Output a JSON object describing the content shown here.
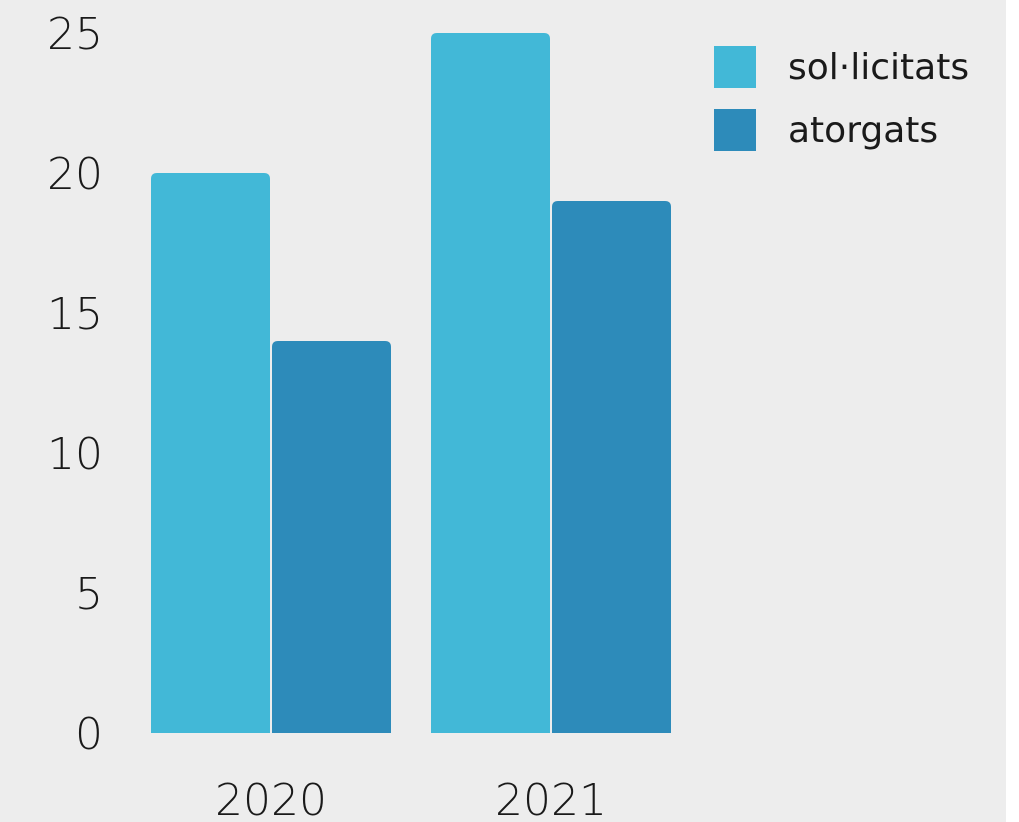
{
  "chart_data": {
    "type": "bar",
    "categories": [
      "2020",
      "2021"
    ],
    "series": [
      {
        "name": "sol·licitats",
        "values": [
          20,
          25
        ],
        "color": "#42b8d7"
      },
      {
        "name": "atorgats",
        "values": [
          14,
          19
        ],
        "color": "#2d8bba"
      }
    ],
    "ylim": [
      0,
      25
    ],
    "yticks": [
      "0",
      "5",
      "10",
      "15",
      "20",
      "25"
    ],
    "xlabel": "",
    "ylabel": "",
    "title": "",
    "grid": false,
    "legend_position": "top-right"
  },
  "colors": {
    "background": "#ededed",
    "text": "#1a1a1a"
  }
}
